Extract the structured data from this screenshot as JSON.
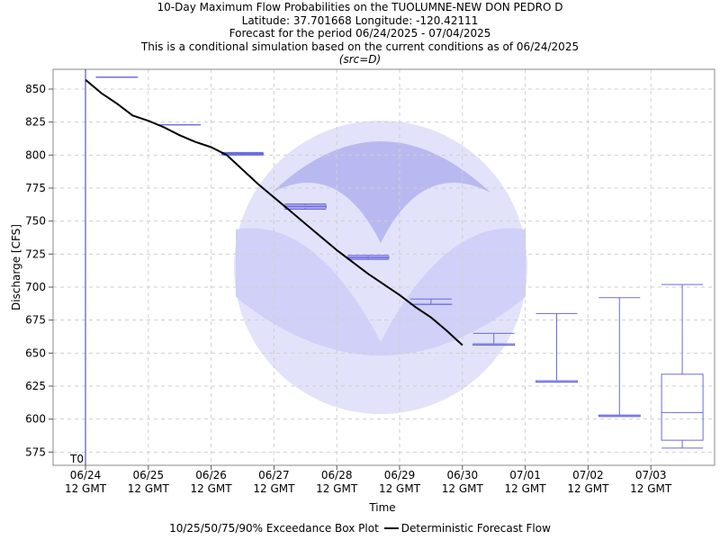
{
  "header": {
    "title": "10-Day Maximum Flow Probabilities on the TUOLUMNE-NEW DON PEDRO D",
    "location": "Latitude: 37.701668 Longitude: -120.42111",
    "period": "Forecast for the period 06/24/2025 - 07/04/2025",
    "note": "This is a conditional simulation based on the current conditions as of 06/24/2025",
    "source": "(src=D)"
  },
  "legend": {
    "box_label": "10/25/50/75/90% Exceedance Box Plot",
    "line_label": "Deterministic Forecast Flow"
  },
  "colors": {
    "box": "#6a6ae0",
    "line": "#000000",
    "t0_line": "#3333aa",
    "grid": "#cfcfcf",
    "watermark": "#b9b9f2"
  },
  "chart_data": {
    "type": "box",
    "xlabel": "Time",
    "ylabel": "Discharge [CFS]",
    "xlim": [
      0,
      10.4
    ],
    "ylim": [
      565,
      865
    ],
    "yticks": [
      575,
      600,
      625,
      650,
      675,
      700,
      725,
      750,
      775,
      800,
      825,
      850
    ],
    "xticks": [
      {
        "x": 0,
        "date": "06/24",
        "time": "12 GMT"
      },
      {
        "x": 1,
        "date": "06/25",
        "time": "12 GMT"
      },
      {
        "x": 2,
        "date": "06/26",
        "time": "12 GMT"
      },
      {
        "x": 3,
        "date": "06/27",
        "time": "12 GMT"
      },
      {
        "x": 4,
        "date": "06/28",
        "time": "12 GMT"
      },
      {
        "x": 5,
        "date": "06/29",
        "time": "12 GMT"
      },
      {
        "x": 6,
        "date": "06/30",
        "time": "12 GMT"
      },
      {
        "x": 7,
        "date": "07/01",
        "time": "12 GMT"
      },
      {
        "x": 8,
        "date": "07/02",
        "time": "12 GMT"
      },
      {
        "x": 9,
        "date": "07/03",
        "time": "12 GMT"
      }
    ],
    "t0_label": "T0",
    "t0_x": 0,
    "boxes": [
      {
        "x": 0.5,
        "p10": 859,
        "p25": 859,
        "p50": 859,
        "p75": 859,
        "p90": 859
      },
      {
        "x": 1.5,
        "p10": 823,
        "p25": 823,
        "p50": 823,
        "p75": 823,
        "p90": 823
      },
      {
        "x": 2.5,
        "p10": 800,
        "p25": 800.5,
        "p50": 801,
        "p75": 801.5,
        "p90": 802
      },
      {
        "x": 3.5,
        "p10": 759,
        "p25": 760,
        "p50": 761,
        "p75": 762,
        "p90": 763
      },
      {
        "x": 4.5,
        "p10": 721,
        "p25": 722,
        "p50": 722,
        "p75": 723,
        "p90": 724
      },
      {
        "x": 5.5,
        "p10": 687,
        "p25": 687,
        "p50": 687,
        "p75": 687,
        "p90": 691
      },
      {
        "x": 6.5,
        "p10": 656,
        "p25": 656,
        "p50": 657,
        "p75": 657,
        "p90": 665
      },
      {
        "x": 7.5,
        "p10": 628,
        "p25": 628,
        "p50": 629,
        "p75": 629,
        "p90": 680
      },
      {
        "x": 8.5,
        "p10": 602,
        "p25": 602,
        "p50": 603,
        "p75": 603,
        "p90": 692
      },
      {
        "x": 9.5,
        "p10": 578,
        "p25": 584,
        "p50": 605,
        "p75": 634,
        "p90": 702
      }
    ],
    "deterministic": {
      "x": [
        0,
        0.25,
        0.5,
        0.75,
        1.0,
        1.25,
        1.5,
        1.75,
        2.0,
        2.25,
        2.5,
        2.75,
        3.0,
        3.25,
        3.5,
        3.75,
        4.0,
        4.25,
        4.5,
        4.75,
        5.0,
        5.25,
        5.5,
        5.75,
        6.0
      ],
      "y": [
        857,
        847,
        839,
        830,
        826,
        821,
        815,
        810,
        806,
        800,
        789,
        778,
        768,
        758,
        748,
        738,
        728,
        719,
        710,
        702,
        694,
        685,
        677,
        667,
        656
      ]
    }
  }
}
